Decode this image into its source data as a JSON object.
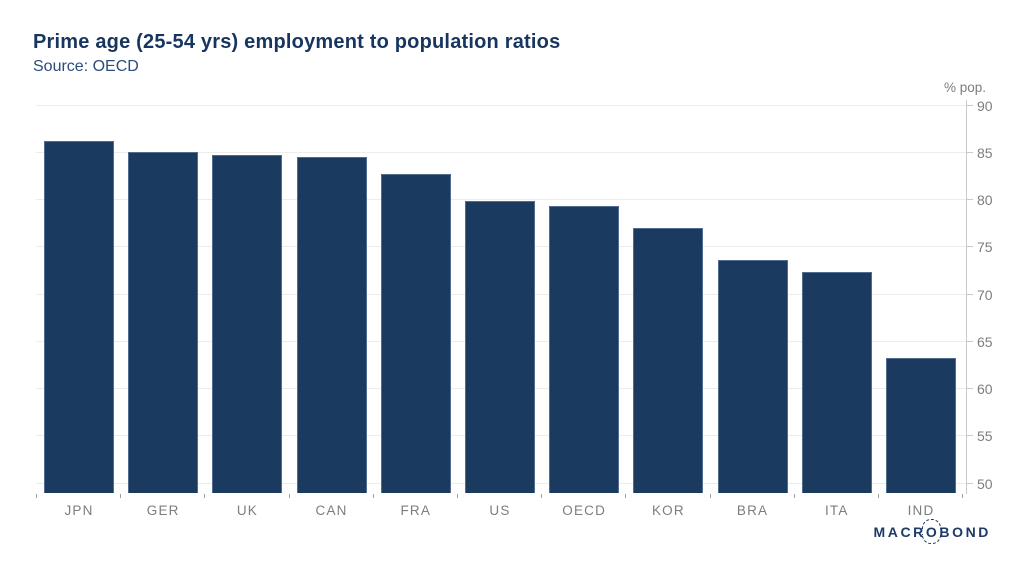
{
  "chart_data": {
    "type": "bar",
    "title": "Prime age (25-54 yrs) employment to population ratios",
    "subtitle": "Source: OECD",
    "ylabel": "% pop.",
    "xlabel": "",
    "categories": [
      "JPN",
      "GER",
      "UK",
      "CAN",
      "FRA",
      "US",
      "OECD",
      "KOR",
      "BRA",
      "ITA",
      "IND"
    ],
    "values": [
      86.3,
      85.1,
      84.8,
      84.6,
      82.8,
      79.9,
      79.4,
      77.1,
      73.7,
      72.4,
      63.3
    ],
    "yticks": [
      50,
      55,
      60,
      65,
      70,
      75,
      80,
      85,
      90
    ],
    "ylim": [
      49,
      90.6
    ],
    "grid": true,
    "legend_position": "none",
    "axis_side": "right",
    "colors": {
      "bar": "#1B3A5F",
      "bar_edge": "#7F95B6",
      "gridline": "#ECECEC",
      "axis_line": "#C9C9C9",
      "tick_text": "#7D7D7D",
      "title_text": "#17355E",
      "subtitle_text": "#2B4C7E"
    }
  },
  "branding": {
    "logo_pre": "MACR",
    "logo_o": "O",
    "logo_post": "BOND"
  }
}
